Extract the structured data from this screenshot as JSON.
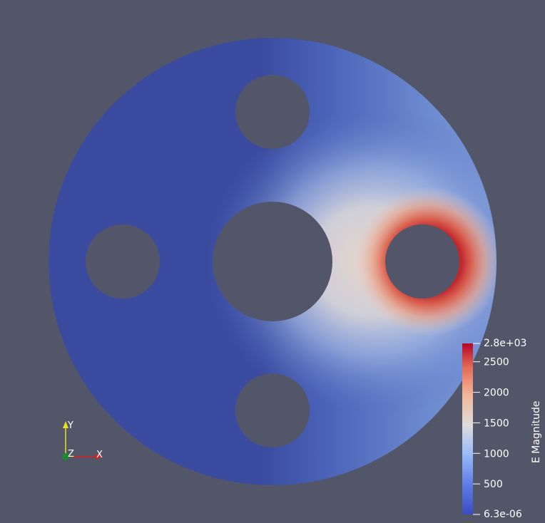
{
  "colors": {
    "background": "#535669",
    "field_low": "#3b4ca0",
    "field_mid": "#dddcdc",
    "field_high": "#b40426",
    "axis_x": "#d62020",
    "axis_y": "#e8e01a",
    "axis_z": "#1a8a2a"
  },
  "scalar_bar": {
    "title": "E Magnitude",
    "range_max_label": "2.8e+03",
    "range_min_label": "6.3e-06",
    "ticks": [
      {
        "label": "2500",
        "value": 2500
      },
      {
        "label": "2000",
        "value": 2000
      },
      {
        "label": "1500",
        "value": 1500
      },
      {
        "label": "1000",
        "value": 1000
      },
      {
        "label": "500",
        "value": 500
      }
    ],
    "range": [
      6.3e-06,
      2800
    ]
  },
  "orientation_axes": {
    "x_label": "X",
    "y_label": "Y",
    "z_label": "Z"
  }
}
